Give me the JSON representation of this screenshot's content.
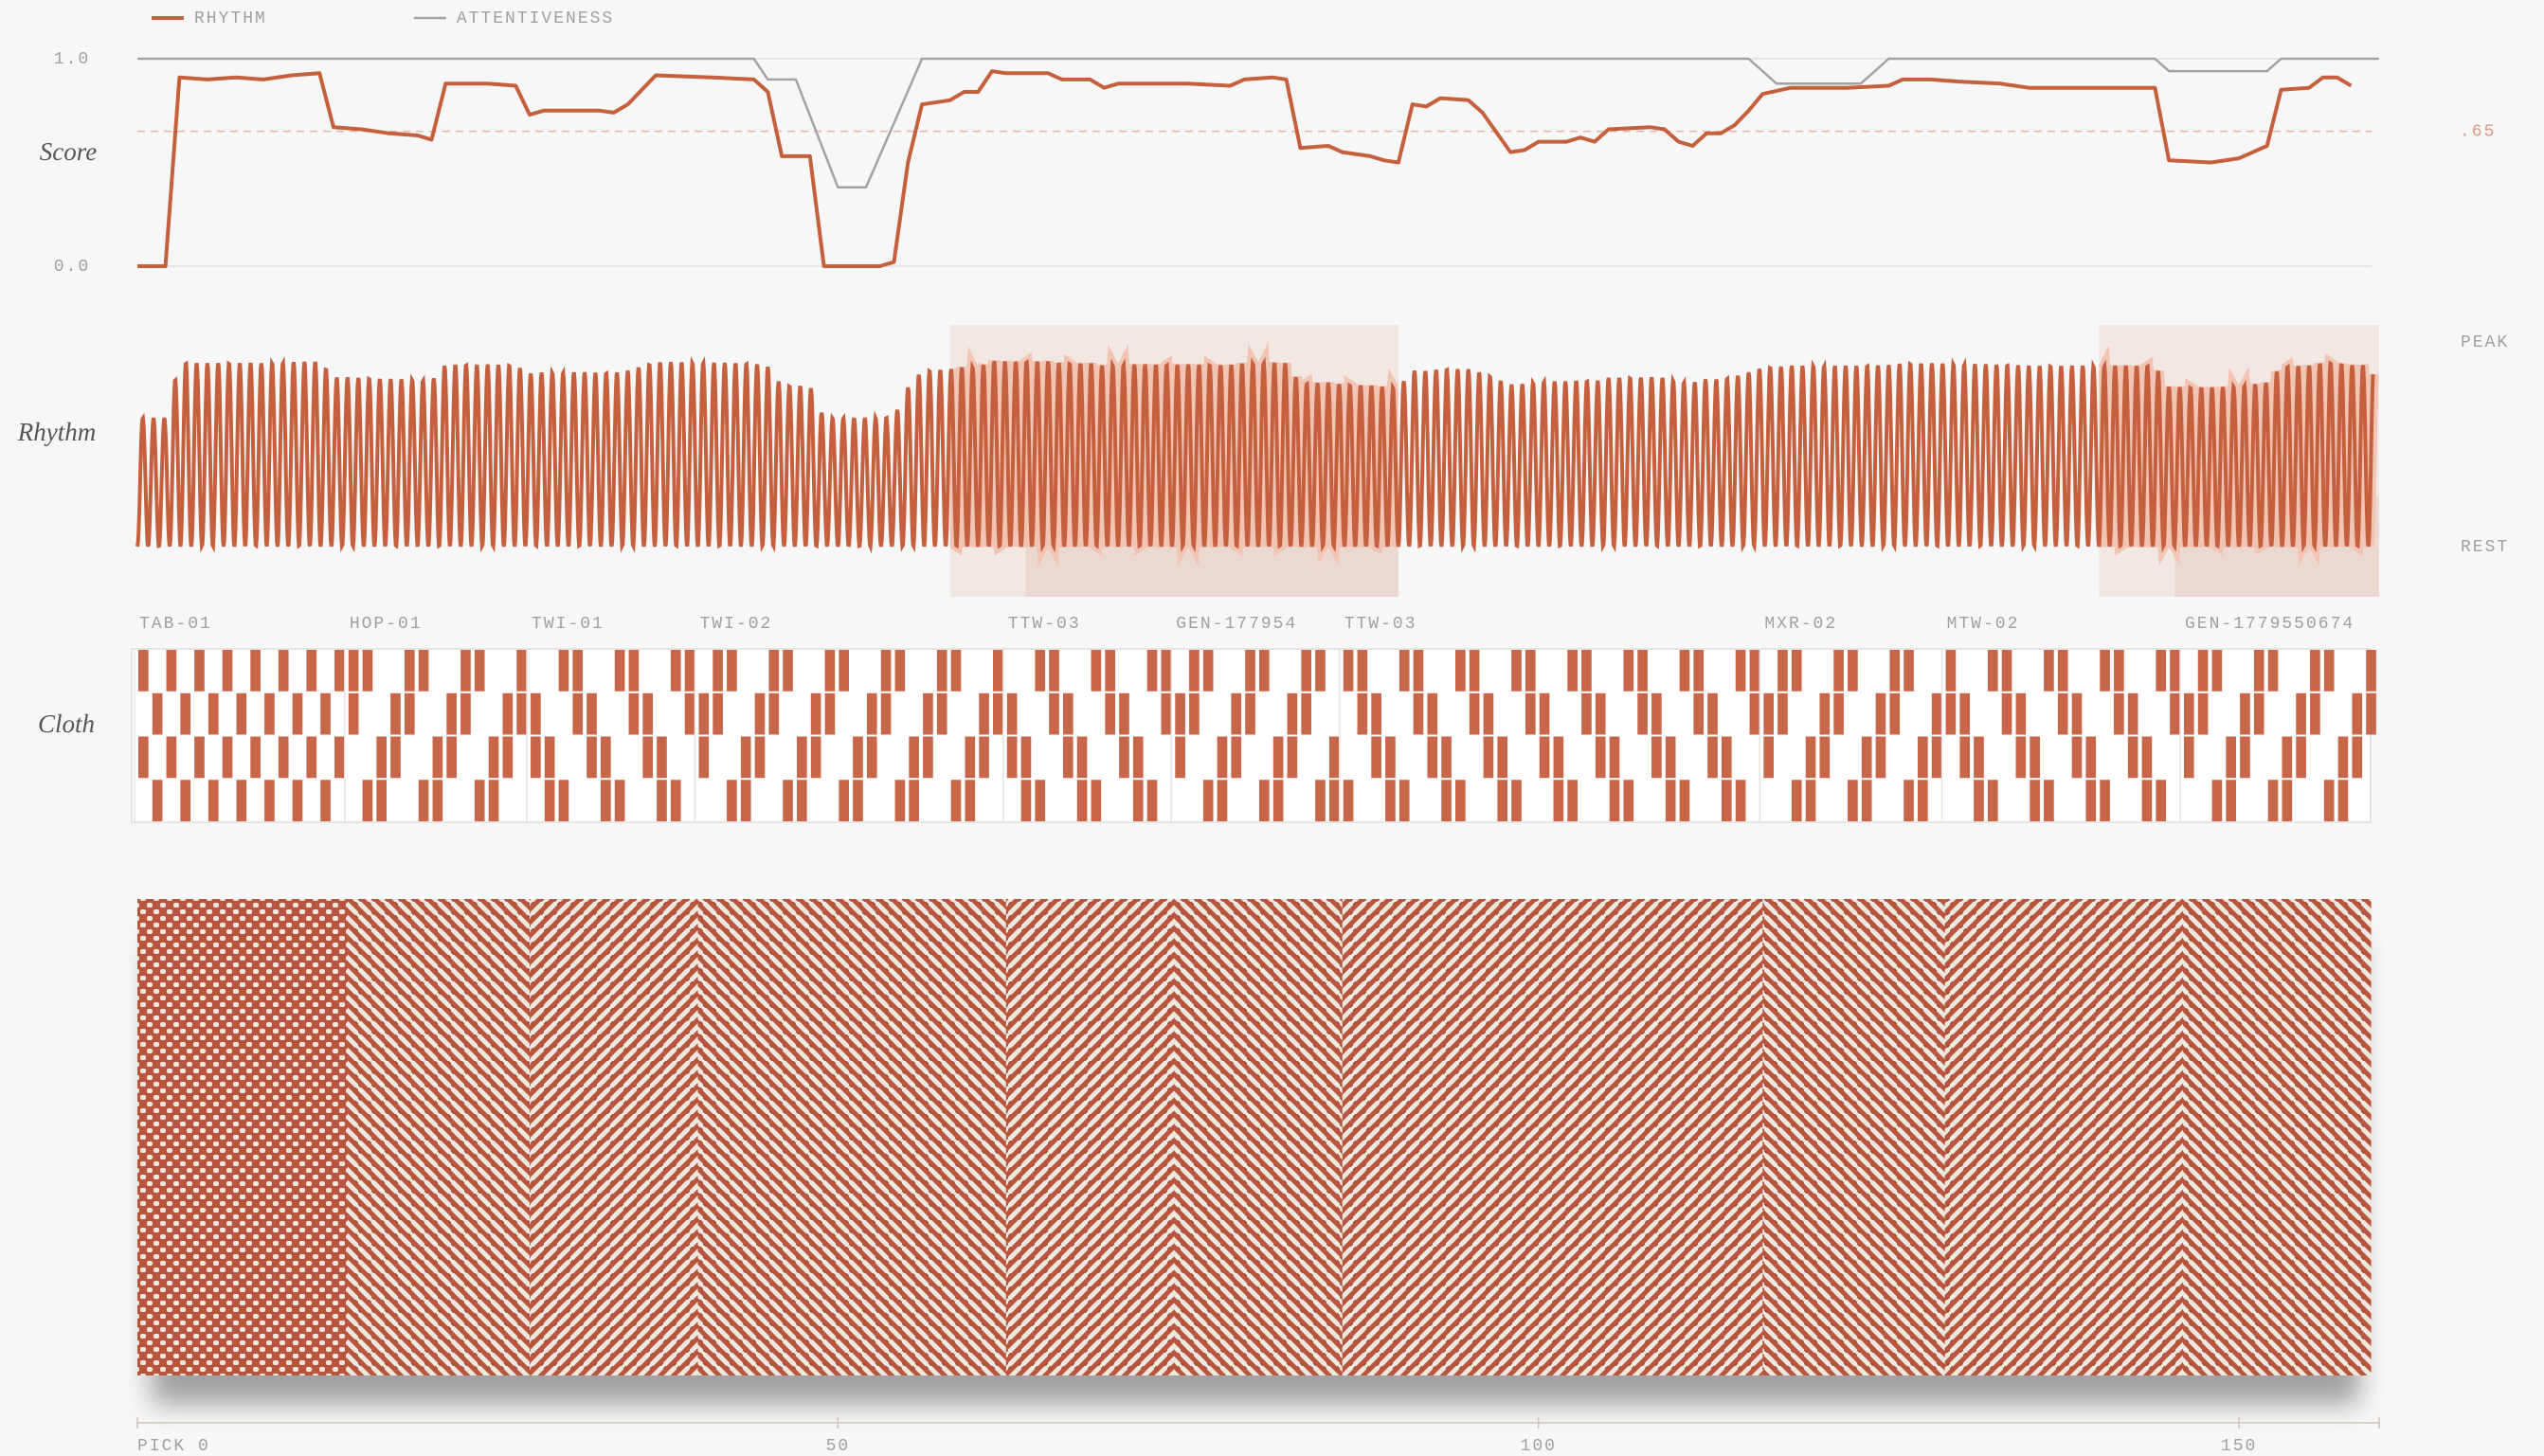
{
  "legend": "top-left",
  "chart_data": [
    {
      "type": "line",
      "label": "Score",
      "xlim": [
        0,
        160
      ],
      "ylim": [
        0,
        1
      ],
      "yticks": [
        {
          "value": 0,
          "label": "0.0"
        },
        {
          "value": 1,
          "label": "1.0"
        }
      ],
      "threshold": {
        "value": 0.65,
        "label": ".65"
      },
      "series": [
        {
          "name": "RHYTHM",
          "color": "#c5603f",
          "x": [
            0,
            2,
            3,
            5,
            7,
            9,
            11,
            13,
            14,
            16,
            18,
            20,
            21,
            22,
            25,
            27,
            28,
            29,
            33,
            34,
            35,
            37,
            41,
            44,
            45,
            46,
            48,
            49,
            53,
            54,
            55,
            56,
            58,
            59,
            60,
            61,
            62,
            65,
            66,
            68,
            69,
            70,
            75,
            78,
            79,
            81,
            82,
            83,
            85,
            86,
            88,
            89,
            90,
            91,
            92,
            93,
            95,
            96,
            98,
            99,
            100,
            102,
            103,
            104,
            105,
            108,
            109,
            110,
            111,
            112,
            113,
            114,
            115,
            116,
            118,
            122,
            125,
            126,
            128,
            130,
            133,
            135,
            144,
            145,
            148,
            150,
            152,
            153,
            155,
            156,
            157,
            158
          ],
          "values": [
            0,
            0,
            0.91,
            0.9,
            0.91,
            0.9,
            0.92,
            0.93,
            0.67,
            0.66,
            0.64,
            0.63,
            0.61,
            0.88,
            0.88,
            0.87,
            0.73,
            0.75,
            0.75,
            0.74,
            0.78,
            0.92,
            0.91,
            0.9,
            0.84,
            0.53,
            0.53,
            0,
            0,
            0.02,
            0.5,
            0.78,
            0.8,
            0.84,
            0.84,
            0.94,
            0.93,
            0.93,
            0.9,
            0.9,
            0.86,
            0.88,
            0.88,
            0.87,
            0.9,
            0.91,
            0.9,
            0.57,
            0.58,
            0.55,
            0.53,
            0.51,
            0.5,
            0.78,
            0.77,
            0.81,
            0.8,
            0.74,
            0.55,
            0.56,
            0.6,
            0.6,
            0.62,
            0.6,
            0.66,
            0.67,
            0.66,
            0.6,
            0.58,
            0.64,
            0.64,
            0.68,
            0.75,
            0.83,
            0.86,
            0.86,
            0.87,
            0.9,
            0.9,
            0.89,
            0.88,
            0.86,
            0.86,
            0.51,
            0.5,
            0.52,
            0.58,
            0.85,
            0.86,
            0.91,
            0.91,
            0.87
          ]
        },
        {
          "name": "ATTENTIVENESS",
          "color": "#a3a3a3",
          "x": [
            0,
            44,
            45,
            47,
            50,
            52,
            56,
            115,
            117,
            123,
            125,
            144,
            145,
            152,
            153,
            160
          ],
          "values": [
            1,
            1,
            0.9,
            0.9,
            0.38,
            0.38,
            1,
            1,
            0.88,
            0.88,
            1,
            1,
            0.94,
            0.94,
            1,
            1
          ]
        }
      ]
    },
    {
      "type": "wave",
      "label": "Rhythm",
      "peak_label": "PEAK",
      "rest_label": "REST",
      "color": "#c5603f",
      "highlights": [
        [
          58,
          90
        ],
        [
          140,
          160
        ]
      ]
    },
    {
      "type": "cloth",
      "label": "Cloth",
      "color": "#c8664a",
      "segments": [
        {
          "name": "TAB-01",
          "start": 0
        },
        {
          "name": "HOP-01",
          "start": 15
        },
        {
          "name": "TWI-01",
          "start": 28
        },
        {
          "name": "TWI-02",
          "start": 40
        },
        {
          "name": "TTW-03",
          "start": 62
        },
        {
          "name": "GEN-177954",
          "start": 74
        },
        {
          "name": "TTW-03",
          "start": 86
        },
        {
          "name": "MXR-02",
          "start": 116
        },
        {
          "name": "MTW-02",
          "start": 129
        },
        {
          "name": "GEN-1779550674",
          "start": 146
        }
      ]
    },
    {
      "type": "axis",
      "xlim": [
        0,
        160
      ],
      "xticks": [
        {
          "value": 0,
          "label": "PICK 0"
        },
        50,
        100,
        150
      ]
    }
  ]
}
